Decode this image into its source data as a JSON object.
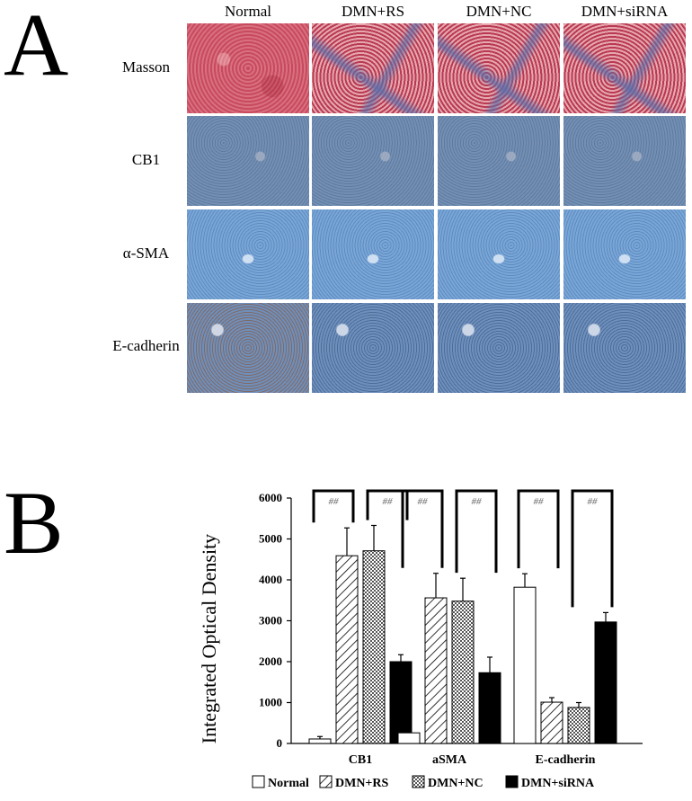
{
  "panel_a": {
    "letter": "A",
    "columns": [
      "Normal",
      "DMN+RS",
      "DMN+NC",
      "DMN+siRNA"
    ],
    "rows": [
      "Masson",
      "CB1",
      "α-SMA",
      "E-cadherin"
    ]
  },
  "panel_b": {
    "letter": "B"
  },
  "colors": {
    "normal": "#ffffff",
    "dmn_rs": "#ffffff",
    "dmn_nc": "#d0d0d0",
    "dmn_sirna": "#000000"
  },
  "chart_data": {
    "type": "bar",
    "title": "",
    "xlabel": "",
    "ylabel": "Integrated Optical Density",
    "ylim": [
      0,
      6000
    ],
    "yticks": [
      0,
      1000,
      2000,
      3000,
      4000,
      5000,
      6000
    ],
    "categories": [
      "CB1",
      "aSMA",
      "E-cadherin"
    ],
    "series": [
      {
        "name": "Normal",
        "pattern": "open",
        "values": [
          110,
          260,
          3820
        ],
        "errors": [
          60,
          30,
          330
        ]
      },
      {
        "name": "DMN+RS",
        "pattern": "hatched",
        "values": [
          4590,
          3560,
          1010
        ],
        "errors": [
          680,
          600,
          110
        ]
      },
      {
        "name": "DMN+NC",
        "pattern": "crosshatched",
        "values": [
          4710,
          3480,
          880
        ],
        "errors": [
          620,
          560,
          120
        ]
      },
      {
        "name": "DMN+siRNA",
        "pattern": "solid",
        "values": [
          2000,
          1730,
          2970
        ],
        "errors": [
          170,
          380,
          230
        ]
      }
    ],
    "significance_label": "##",
    "grid": false,
    "legend_position": "bottom"
  }
}
